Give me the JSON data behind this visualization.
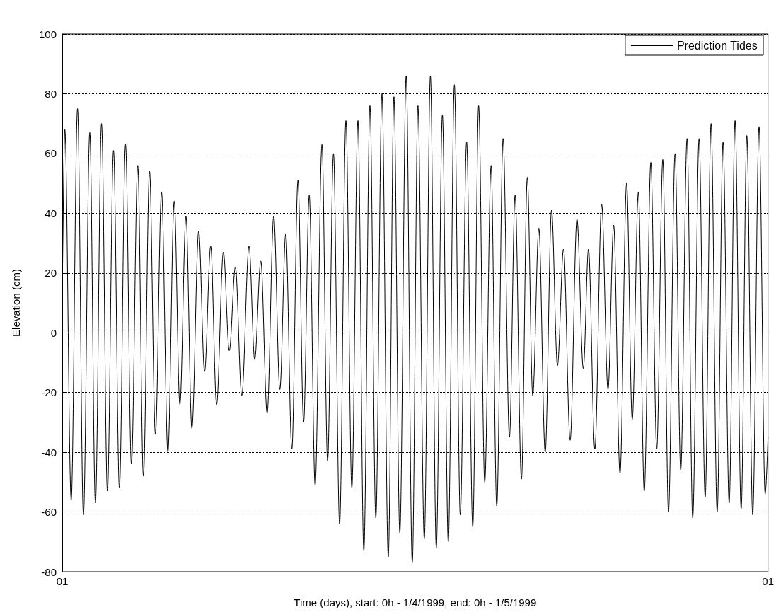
{
  "chart_data": {
    "type": "line",
    "xlabel": "Time (days), start: 0h - 1/4/1999, end: 0h - 1/5/1999",
    "ylabel": "Elevation (cm)",
    "x": [
      "1999-04-01T00:00",
      "1999-04-01T02:38",
      "1999-04-01T09:07",
      "1999-04-01T15:36",
      "1999-04-01T21:36",
      "1999-04-02T04:05",
      "1999-04-02T09:50",
      "1999-04-02T16:05",
      "1999-04-02T22:05",
      "1999-04-03T04:19",
      "1999-04-03T10:19",
      "1999-04-03T16:34",
      "1999-04-03T22:34",
      "1999-04-04T05:02",
      "1999-04-04T10:48",
      "1999-04-04T17:02",
      "1999-04-04T23:02",
      "1999-04-05T05:17",
      "1999-04-05T11:46",
      "1999-04-05T18:14",
      "1999-04-06T00:00",
      "1999-04-06T06:14",
      "1999-04-06T12:14",
      "1999-04-06T19:12",
      "1999-04-07T01:12",
      "1999-04-07T07:26",
      "1999-04-07T13:26",
      "1999-04-07T20:24",
      "1999-04-08T02:24",
      "1999-04-08T08:38",
      "1999-04-08T15:07",
      "1999-04-08T22:34",
      "1999-04-09T04:19",
      "1999-04-09T10:34",
      "1999-04-09T17:02",
      "1999-04-09T23:46",
      "1999-04-10T06:00",
      "1999-04-10T12:00",
      "1999-04-10T18:14",
      "1999-04-11T00:29",
      "1999-04-11T06:14",
      "1999-04-11T12:00",
      "1999-04-11T18:00",
      "1999-04-12T00:58",
      "1999-04-12T06:43",
      "1999-04-12T12:43",
      "1999-04-12T18:58",
      "1999-04-13T01:26",
      "1999-04-13T07:26",
      "1999-04-13T13:41",
      "1999-04-13T19:41",
      "1999-04-14T01:55",
      "1999-04-14T07:55",
      "1999-04-14T14:10",
      "1999-04-14T20:38",
      "1999-04-15T02:24",
      "1999-04-15T08:24",
      "1999-04-15T14:53",
      "1999-04-15T21:07",
      "1999-04-16T02:53",
      "1999-04-16T09:22",
      "1999-04-16T15:36",
      "1999-04-16T21:36",
      "1999-04-17T03:50",
      "1999-04-17T09:50",
      "1999-04-17T16:05",
      "1999-04-17T22:05",
      "1999-04-18T04:34",
      "1999-04-18T10:48",
      "1999-04-18T16:48",
      "1999-04-18T23:02",
      "1999-04-19T05:31",
      "1999-04-19T11:17",
      "1999-04-19T17:46",
      "1999-04-20T00:14",
      "1999-04-20T06:00",
      "1999-04-20T12:29",
      "1999-04-20T18:29",
      "1999-04-21T00:00",
      "1999-04-21T06:14",
      "1999-04-21T12:43",
      "1999-04-21T19:12",
      "1999-04-22T01:12",
      "1999-04-22T07:26",
      "1999-04-22T14:10",
      "1999-04-22T21:07",
      "1999-04-23T03:36",
      "1999-04-23T08:53",
      "1999-04-23T15:22",
      "1999-04-23T22:19",
      "1999-04-24T04:48",
      "1999-04-24T10:34",
      "1999-04-24T17:02",
      "1999-04-24T23:46",
      "1999-04-25T05:31",
      "1999-04-25T11:46",
      "1999-04-25T17:46",
      "1999-04-26T00:29",
      "1999-04-26T06:29",
      "1999-04-26T12:43",
      "1999-04-26T18:29",
      "1999-04-27T01:12",
      "1999-04-27T06:58",
      "1999-04-27T13:26",
      "1999-04-27T19:12",
      "1999-04-28T01:41",
      "1999-04-28T07:55",
      "1999-04-28T13:55",
      "1999-04-28T20:10",
      "1999-04-29T02:10",
      "1999-04-29T08:24",
      "1999-04-29T14:24",
      "1999-04-29T20:38",
      "1999-04-30T02:24",
      "1999-04-30T08:24",
      "1999-04-30T14:53",
      "1999-04-30T21:07",
      "1999-05-01T00:00"
    ],
    "series": [
      {
        "name": "Prediction Tides",
        "color": "#000000",
        "values": [
          11,
          68,
          -56,
          75,
          -61,
          67,
          -57,
          70,
          -53,
          61,
          -52,
          63,
          -44,
          56,
          -48,
          54,
          -34,
          47,
          -40,
          44,
          -24,
          39,
          -32,
          34,
          -13,
          29,
          -24,
          27,
          -6,
          22,
          -21,
          29,
          -9,
          24,
          -27,
          39,
          -19,
          33,
          -39,
          51,
          -30,
          46,
          -51,
          63,
          -43,
          60,
          -64,
          71,
          -52,
          71,
          -73,
          76,
          -62,
          80,
          -75,
          79,
          -67,
          86,
          -77,
          76,
          -69,
          86,
          -72,
          73,
          -70,
          83,
          -61,
          64,
          -65,
          76,
          -50,
          56,
          -58,
          65,
          -35,
          46,
          -49,
          52,
          -21,
          35,
          -40,
          41,
          -11,
          28,
          -36,
          38,
          -12,
          28,
          -39,
          43,
          -19,
          36,
          -47,
          50,
          -29,
          47,
          -53,
          57,
          -39,
          58,
          -60,
          60,
          -46,
          65,
          -62,
          65,
          -55,
          70,
          -60,
          64,
          -57,
          71,
          -59,
          66,
          -61,
          69,
          -54,
          -35
        ]
      }
    ],
    "xlim": [
      "1999-04-01",
      "1999-05-01"
    ],
    "xticks": [
      {
        "value": "1999-04-01",
        "label": "01"
      },
      {
        "value": "1999-05-01",
        "label": "01"
      }
    ],
    "ylim": [
      -80,
      100
    ],
    "yticks": [
      -80,
      -60,
      -40,
      -20,
      0,
      20,
      40,
      60,
      80,
      100
    ],
    "grid": "y",
    "legend": "top right"
  }
}
